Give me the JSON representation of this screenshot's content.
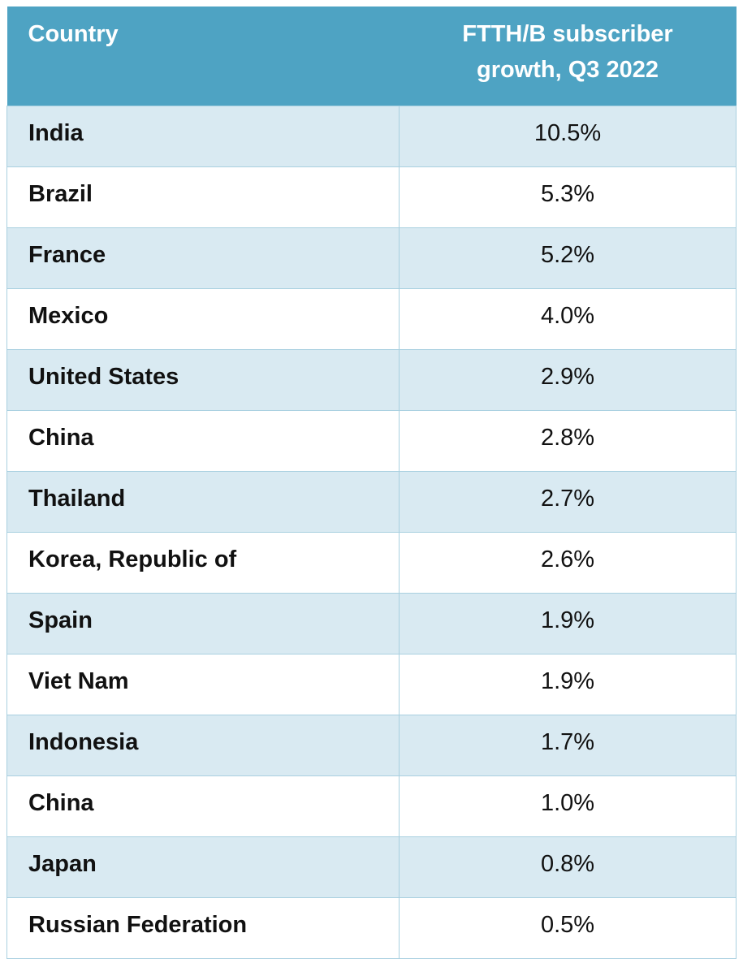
{
  "table": {
    "header": [
      "Country",
      "FTTH/B subscriber growth, Q3 2022"
    ],
    "rows": [
      [
        "India",
        "10.5%"
      ],
      [
        "Brazil",
        "5.3%"
      ],
      [
        "France",
        "5.2%"
      ],
      [
        "Mexico",
        "4.0%"
      ],
      [
        "United States",
        "2.9%"
      ],
      [
        "China",
        "2.8%"
      ],
      [
        "Thailand",
        "2.7%"
      ],
      [
        "Korea, Republic of",
        "2.6%"
      ],
      [
        "Spain",
        "1.9%"
      ],
      [
        "Viet Nam",
        "1.9%"
      ],
      [
        "Indonesia",
        "1.7%"
      ],
      [
        "China",
        "1.0%"
      ],
      [
        "Japan",
        "0.8%"
      ],
      [
        "Russian Federation",
        "0.5%"
      ]
    ]
  }
}
